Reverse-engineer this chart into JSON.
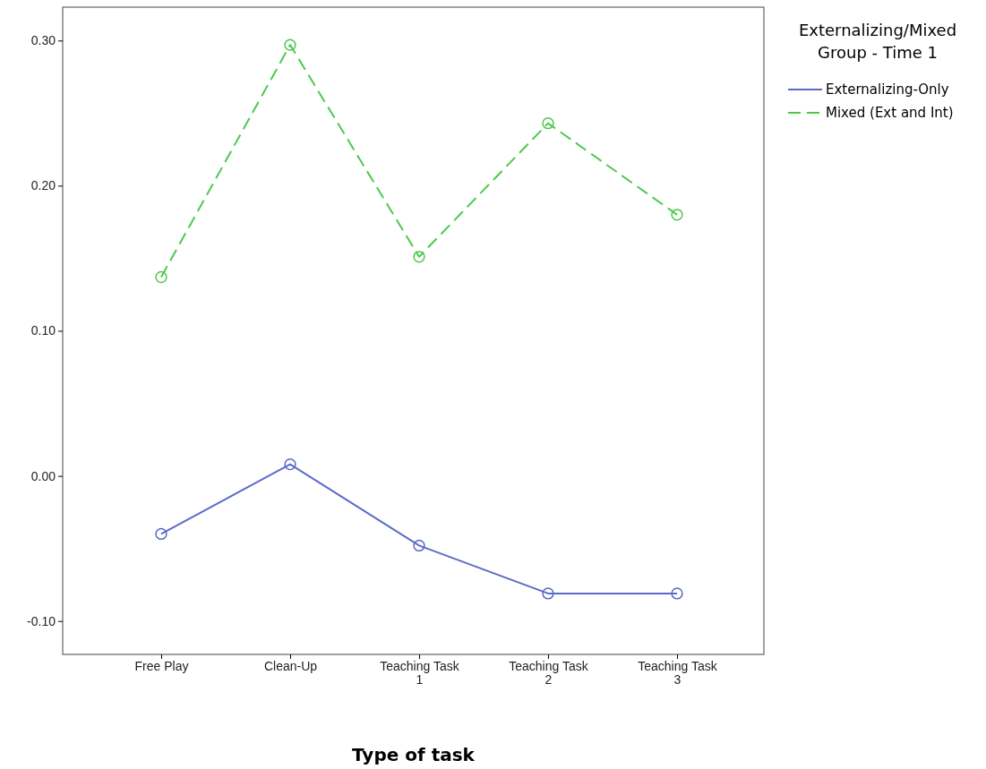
{
  "chart_data": {
    "type": "line",
    "xlabel": "Type of task",
    "legend_title": "Externalizing/Mixed Group - Time 1",
    "legend": "top right",
    "marker": "circle",
    "categories": [
      "Free Play",
      "Clean-Up",
      "Teaching Task 1",
      "Teaching Task 2",
      "Teaching Task 3"
    ],
    "ylim": [
      -0.123,
      0.323
    ],
    "yticks": [
      {
        "value": -0.1,
        "label": "-0.10"
      },
      {
        "value": 0,
        "label": "0.00"
      },
      {
        "value": 0.1,
        "label": "0.10"
      },
      {
        "value": 0.2,
        "label": "0.20"
      },
      {
        "value": 0.3,
        "label": "0.30"
      }
    ],
    "series": [
      {
        "name": "Externalizing-Only",
        "color": "#5b6ac9",
        "line_style": "solid",
        "values": [
          -0.04,
          0.008,
          -0.048,
          -0.081,
          -0.081
        ]
      },
      {
        "name": "Mixed (Ext and Int)",
        "color": "#4cc94c",
        "line_style": "dashed",
        "values": [
          0.137,
          0.297,
          0.151,
          0.243,
          0.18
        ]
      }
    ]
  }
}
